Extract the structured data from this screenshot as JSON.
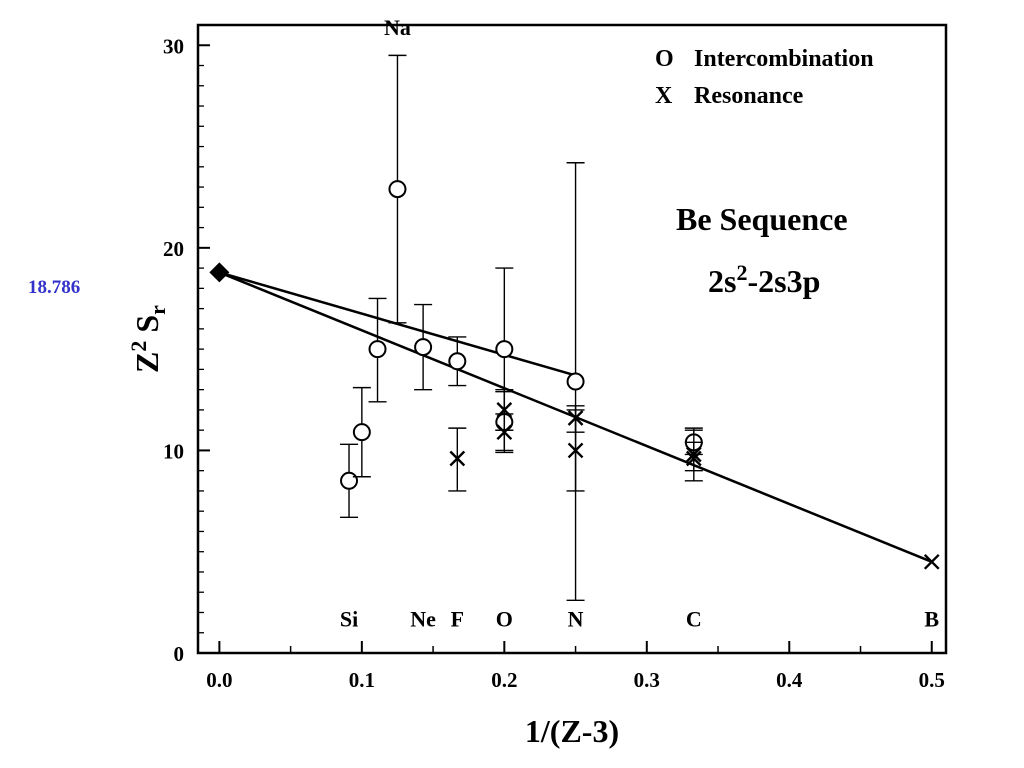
{
  "chart_data": {
    "type": "scatter",
    "xlabel": "1/(Z-3)",
    "ylabel_main": "Z",
    "ylabel_sup": "2",
    "ylabel_tail": " S",
    "ylabel_sub": "r",
    "xlim": [
      -0.015,
      0.51
    ],
    "ylim": [
      0,
      31
    ],
    "x_ticks": [
      0.0,
      0.1,
      0.2,
      0.3,
      0.4,
      0.5
    ],
    "x_tick_labels": [
      "0.0",
      "0.1",
      "0.2",
      "0.3",
      "0.4",
      "0.5"
    ],
    "y_ticks": [
      0,
      10,
      20,
      30
    ],
    "y_tick_labels": [
      "0",
      "10",
      "20",
      "30"
    ],
    "legend": [
      {
        "marker": "O",
        "label": "Intercombination"
      },
      {
        "marker": "X",
        "label": "Resonance"
      }
    ],
    "annotation_line1": "Be Sequence",
    "annotation_line2_a": "2s",
    "annotation_line2_sup": "2",
    "annotation_line2_b": "-2s3p",
    "side_value": "18.786",
    "element_labels": [
      {
        "label": "Na",
        "x": 0.125,
        "y": 30.5
      },
      {
        "label": "Si",
        "x": 0.091,
        "y": 1.3
      },
      {
        "label": "Ne",
        "x": 0.143,
        "y": 1.3
      },
      {
        "label": "F",
        "x": 0.167,
        "y": 1.3
      },
      {
        "label": "O",
        "x": 0.2,
        "y": 1.3
      },
      {
        "label": "N",
        "x": 0.25,
        "y": 1.3
      },
      {
        "label": "C",
        "x": 0.333,
        "y": 1.3
      },
      {
        "label": "B",
        "x": 0.5,
        "y": 1.3
      }
    ],
    "series": [
      {
        "name": "Intercombination",
        "marker": "circle",
        "points": [
          {
            "x": 0.091,
            "y": 8.5,
            "lo": 6.7,
            "hi": 10.3
          },
          {
            "x": 0.1,
            "y": 10.9,
            "lo": 8.7,
            "hi": 13.1
          },
          {
            "x": 0.111,
            "y": 15.0,
            "lo": 12.4,
            "hi": 17.5
          },
          {
            "x": 0.125,
            "y": 22.9,
            "lo": 16.3,
            "hi": 29.5
          },
          {
            "x": 0.143,
            "y": 15.1,
            "lo": 13.0,
            "hi": 17.2
          },
          {
            "x": 0.167,
            "y": 14.4,
            "lo": 13.2,
            "hi": 15.6
          },
          {
            "x": 0.2,
            "y": 15.0,
            "lo": 11.0,
            "hi": 19.0
          },
          {
            "x": 0.2,
            "y": 11.4,
            "lo": 9.9,
            "hi": 12.9
          },
          {
            "x": 0.25,
            "y": 13.4,
            "lo": 2.6,
            "hi": 24.2
          },
          {
            "x": 0.333,
            "y": 10.4,
            "lo": 9.8,
            "hi": 11.1
          }
        ]
      },
      {
        "name": "Resonance",
        "marker": "x",
        "points": [
          {
            "x": 0.167,
            "y": 9.6,
            "lo": 8.0,
            "hi": 11.1
          },
          {
            "x": 0.2,
            "y": 12.0,
            "lo": 11.0,
            "hi": 13.0
          },
          {
            "x": 0.2,
            "y": 10.9,
            "lo": 10.0,
            "hi": 11.8
          },
          {
            "x": 0.25,
            "y": 11.6,
            "lo": 10.9,
            "hi": 12.2
          },
          {
            "x": 0.25,
            "y": 10.0,
            "lo": 8.0,
            "hi": 12.0
          },
          {
            "x": 0.333,
            "y": 9.8,
            "lo": 8.5,
            "hi": 11.0
          },
          {
            "x": 0.333,
            "y": 9.6,
            "lo": 9.0,
            "hi": 10.4
          },
          {
            "x": 0.5,
            "y": 4.5,
            "lo": 4.5,
            "hi": 4.5
          }
        ]
      }
    ],
    "fit_lines": [
      {
        "name": "intercombination-fit",
        "x": [
          0.0,
          0.25
        ],
        "y": [
          18.786,
          13.7
        ]
      },
      {
        "name": "resonance-fit",
        "x": [
          0.0,
          0.5
        ],
        "y": [
          18.786,
          4.5
        ]
      }
    ],
    "intercept_point": {
      "x": 0.0,
      "y": 18.786,
      "marker": "diamond"
    }
  }
}
